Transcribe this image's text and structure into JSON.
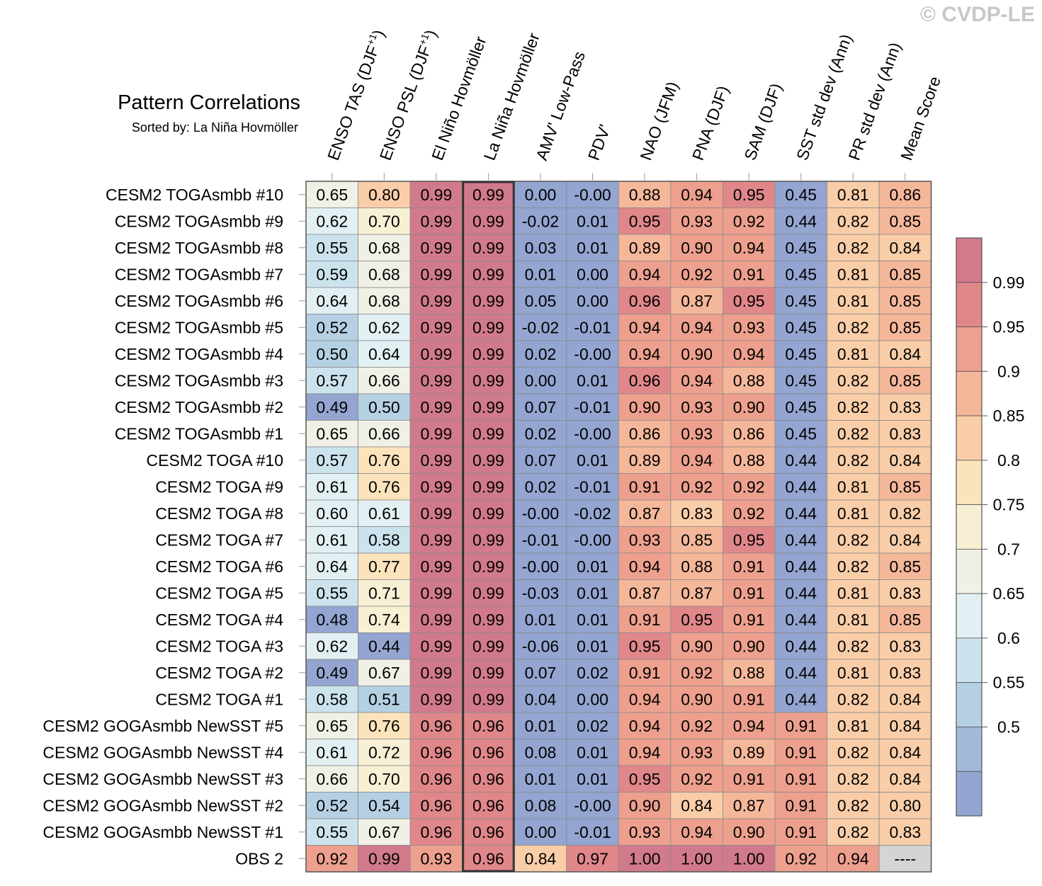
{
  "watermark": "© CVDP-LE",
  "chart_data": {
    "type": "heatmap",
    "title": "Pattern Correlations",
    "subtitle": "Sorted by: La Niña Hovmöller",
    "highlighted_column": "La Niña Hovmöller",
    "columns": [
      "ENSO TAS (DJF+1)",
      "ENSO PSL (DJF+1)",
      "El Niño Hovmöller",
      "La Niña Hovmöller",
      "AMV' Low-Pass",
      "PDV'",
      "NAO (JFM)",
      "PNA (DJF)",
      "SAM (DJF)",
      "SST std dev (Ann)",
      "PR std dev (Ann)",
      "Mean Score"
    ],
    "rows": [
      "CESM2 TOGAsmbb #10",
      "CESM2 TOGAsmbb #9",
      "CESM2 TOGAsmbb #8",
      "CESM2 TOGAsmbb #7",
      "CESM2 TOGAsmbb #6",
      "CESM2 TOGAsmbb #5",
      "CESM2 TOGAsmbb #4",
      "CESM2 TOGAsmbb #3",
      "CESM2 TOGAsmbb #2",
      "CESM2 TOGAsmbb #1",
      "CESM2 TOGA #10",
      "CESM2 TOGA #9",
      "CESM2 TOGA #8",
      "CESM2 TOGA #7",
      "CESM2 TOGA #6",
      "CESM2 TOGA #5",
      "CESM2 TOGA #4",
      "CESM2 TOGA #3",
      "CESM2 TOGA #2",
      "CESM2 TOGA #1",
      "CESM2 GOGAsmbb NewSST #5",
      "CESM2 GOGAsmbb NewSST #4",
      "CESM2 GOGAsmbb NewSST #3",
      "CESM2 GOGAsmbb NewSST #2",
      "CESM2 GOGAsmbb NewSST #1",
      "OBS 2"
    ],
    "values": [
      [
        "0.65",
        "0.80",
        "0.99",
        "0.99",
        "0.00",
        "-0.00",
        "0.88",
        "0.94",
        "0.95",
        "0.45",
        "0.81",
        "0.86"
      ],
      [
        "0.62",
        "0.70",
        "0.99",
        "0.99",
        "-0.02",
        "0.01",
        "0.95",
        "0.93",
        "0.92",
        "0.44",
        "0.82",
        "0.85"
      ],
      [
        "0.55",
        "0.68",
        "0.99",
        "0.99",
        "0.03",
        "0.01",
        "0.89",
        "0.90",
        "0.94",
        "0.45",
        "0.82",
        "0.84"
      ],
      [
        "0.59",
        "0.68",
        "0.99",
        "0.99",
        "0.01",
        "0.00",
        "0.94",
        "0.92",
        "0.91",
        "0.45",
        "0.81",
        "0.85"
      ],
      [
        "0.64",
        "0.68",
        "0.99",
        "0.99",
        "0.05",
        "0.00",
        "0.96",
        "0.87",
        "0.95",
        "0.45",
        "0.81",
        "0.85"
      ],
      [
        "0.52",
        "0.62",
        "0.99",
        "0.99",
        "-0.02",
        "-0.01",
        "0.94",
        "0.94",
        "0.93",
        "0.45",
        "0.82",
        "0.85"
      ],
      [
        "0.50",
        "0.64",
        "0.99",
        "0.99",
        "0.02",
        "-0.00",
        "0.94",
        "0.90",
        "0.94",
        "0.45",
        "0.81",
        "0.84"
      ],
      [
        "0.57",
        "0.66",
        "0.99",
        "0.99",
        "0.00",
        "0.01",
        "0.96",
        "0.94",
        "0.88",
        "0.45",
        "0.82",
        "0.85"
      ],
      [
        "0.49",
        "0.50",
        "0.99",
        "0.99",
        "0.07",
        "-0.01",
        "0.90",
        "0.93",
        "0.90",
        "0.45",
        "0.82",
        "0.83"
      ],
      [
        "0.65",
        "0.66",
        "0.99",
        "0.99",
        "0.02",
        "-0.00",
        "0.86",
        "0.93",
        "0.86",
        "0.45",
        "0.82",
        "0.83"
      ],
      [
        "0.57",
        "0.76",
        "0.99",
        "0.99",
        "0.07",
        "0.01",
        "0.89",
        "0.94",
        "0.88",
        "0.44",
        "0.82",
        "0.84"
      ],
      [
        "0.61",
        "0.76",
        "0.99",
        "0.99",
        "0.02",
        "-0.01",
        "0.91",
        "0.92",
        "0.92",
        "0.44",
        "0.81",
        "0.85"
      ],
      [
        "0.60",
        "0.61",
        "0.99",
        "0.99",
        "-0.00",
        "-0.02",
        "0.87",
        "0.83",
        "0.92",
        "0.44",
        "0.81",
        "0.82"
      ],
      [
        "0.61",
        "0.58",
        "0.99",
        "0.99",
        "-0.01",
        "-0.00",
        "0.93",
        "0.85",
        "0.95",
        "0.44",
        "0.82",
        "0.84"
      ],
      [
        "0.64",
        "0.77",
        "0.99",
        "0.99",
        "-0.00",
        "0.01",
        "0.94",
        "0.88",
        "0.91",
        "0.44",
        "0.82",
        "0.85"
      ],
      [
        "0.55",
        "0.71",
        "0.99",
        "0.99",
        "-0.03",
        "0.01",
        "0.87",
        "0.87",
        "0.91",
        "0.44",
        "0.81",
        "0.83"
      ],
      [
        "0.48",
        "0.74",
        "0.99",
        "0.99",
        "0.01",
        "0.01",
        "0.91",
        "0.95",
        "0.91",
        "0.44",
        "0.81",
        "0.85"
      ],
      [
        "0.62",
        "0.44",
        "0.99",
        "0.99",
        "-0.06",
        "0.01",
        "0.95",
        "0.90",
        "0.90",
        "0.44",
        "0.82",
        "0.83"
      ],
      [
        "0.49",
        "0.67",
        "0.99",
        "0.99",
        "0.07",
        "0.02",
        "0.91",
        "0.92",
        "0.88",
        "0.44",
        "0.81",
        "0.83"
      ],
      [
        "0.58",
        "0.51",
        "0.99",
        "0.99",
        "0.04",
        "0.00",
        "0.94",
        "0.90",
        "0.91",
        "0.44",
        "0.82",
        "0.84"
      ],
      [
        "0.65",
        "0.76",
        "0.96",
        "0.96",
        "0.01",
        "0.02",
        "0.94",
        "0.92",
        "0.94",
        "0.91",
        "0.81",
        "0.84"
      ],
      [
        "0.61",
        "0.72",
        "0.96",
        "0.96",
        "0.08",
        "0.01",
        "0.94",
        "0.93",
        "0.89",
        "0.91",
        "0.82",
        "0.84"
      ],
      [
        "0.66",
        "0.70",
        "0.96",
        "0.96",
        "0.01",
        "0.01",
        "0.95",
        "0.92",
        "0.91",
        "0.91",
        "0.82",
        "0.84"
      ],
      [
        "0.52",
        "0.54",
        "0.96",
        "0.96",
        "0.08",
        "-0.00",
        "0.90",
        "0.84",
        "0.87",
        "0.91",
        "0.82",
        "0.80"
      ],
      [
        "0.55",
        "0.67",
        "0.96",
        "0.96",
        "0.00",
        "-0.01",
        "0.93",
        "0.94",
        "0.90",
        "0.91",
        "0.82",
        "0.83"
      ],
      [
        "0.92",
        "0.99",
        "0.93",
        "0.96",
        "0.84",
        "0.97",
        "1.00",
        "1.00",
        "1.00",
        "0.92",
        "0.94",
        "----"
      ]
    ],
    "colorbar": {
      "labels": [
        "0.99",
        "0.95",
        "0.9",
        "0.85",
        "0.8",
        "0.75",
        "0.7",
        "0.65",
        "0.6",
        "0.55",
        "0.5"
      ],
      "thresholds": [
        0.99,
        0.95,
        0.9,
        0.85,
        0.8,
        0.75,
        0.7,
        0.65,
        0.6,
        0.55,
        0.5
      ],
      "colors": [
        "#d17a8c",
        "#e0878a",
        "#eda08e",
        "#f5b79a",
        "#f8cda8",
        "#fbe3bc",
        "#f8f0d4",
        "#f0f0e6",
        "#e2f0f4",
        "#cce3ed",
        "#b6d0e3",
        "#a2b9d9",
        "#93a5d0"
      ],
      "missing_color": "#d4d4d4"
    }
  }
}
